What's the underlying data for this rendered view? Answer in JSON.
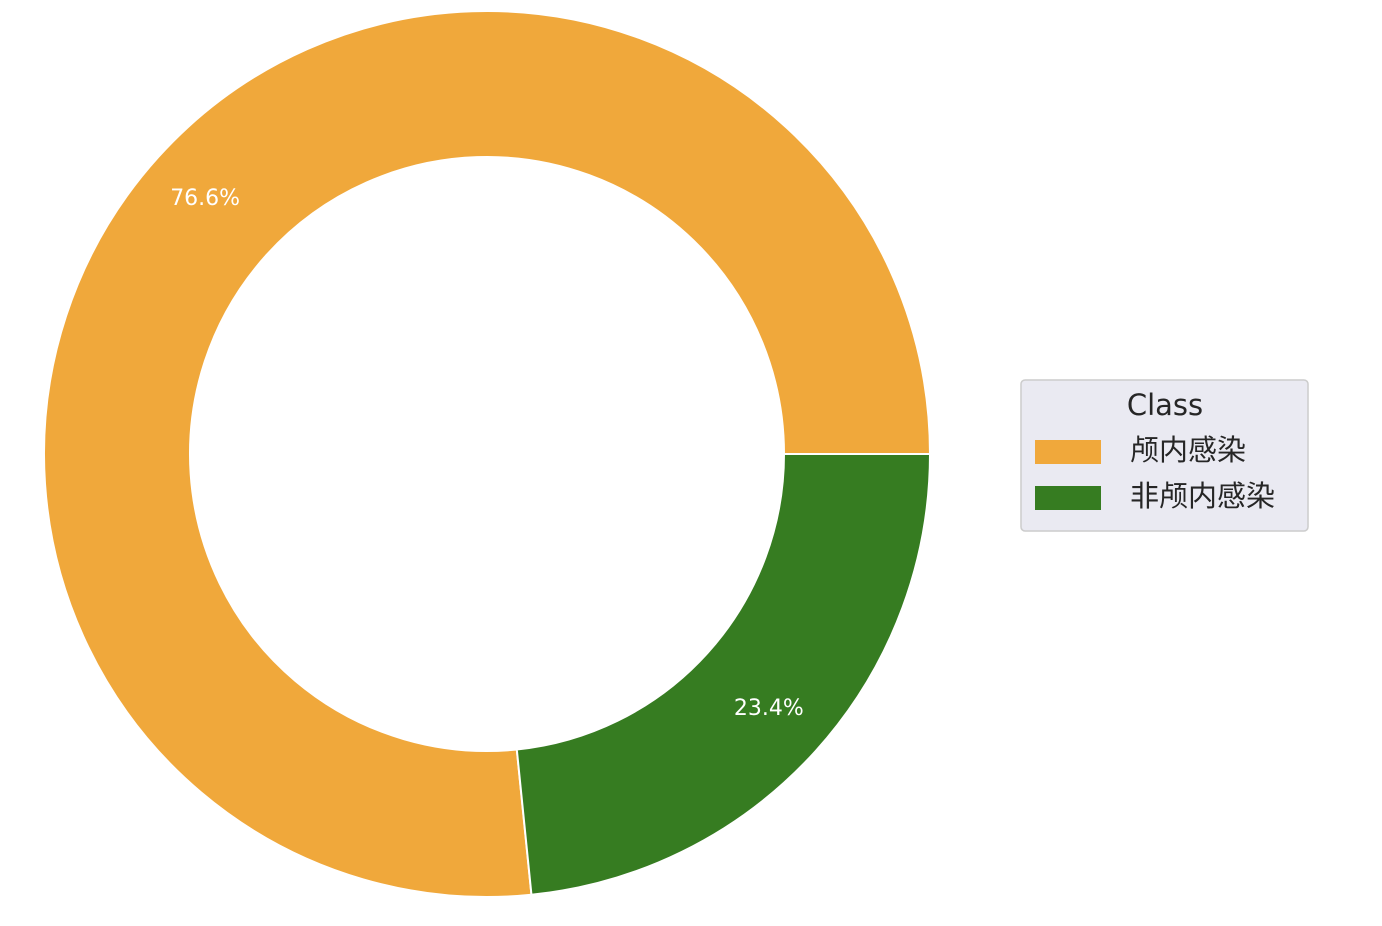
{
  "chart_data": {
    "type": "donut",
    "categories": [
      "颅内感染",
      "非颅内感染"
    ],
    "values": [
      76.6,
      23.4
    ],
    "value_labels": [
      "76.6%",
      "23.4%"
    ],
    "colors": [
      "#f0a83b",
      "#367c21"
    ],
    "legend_title": "Class",
    "legend": "right"
  }
}
